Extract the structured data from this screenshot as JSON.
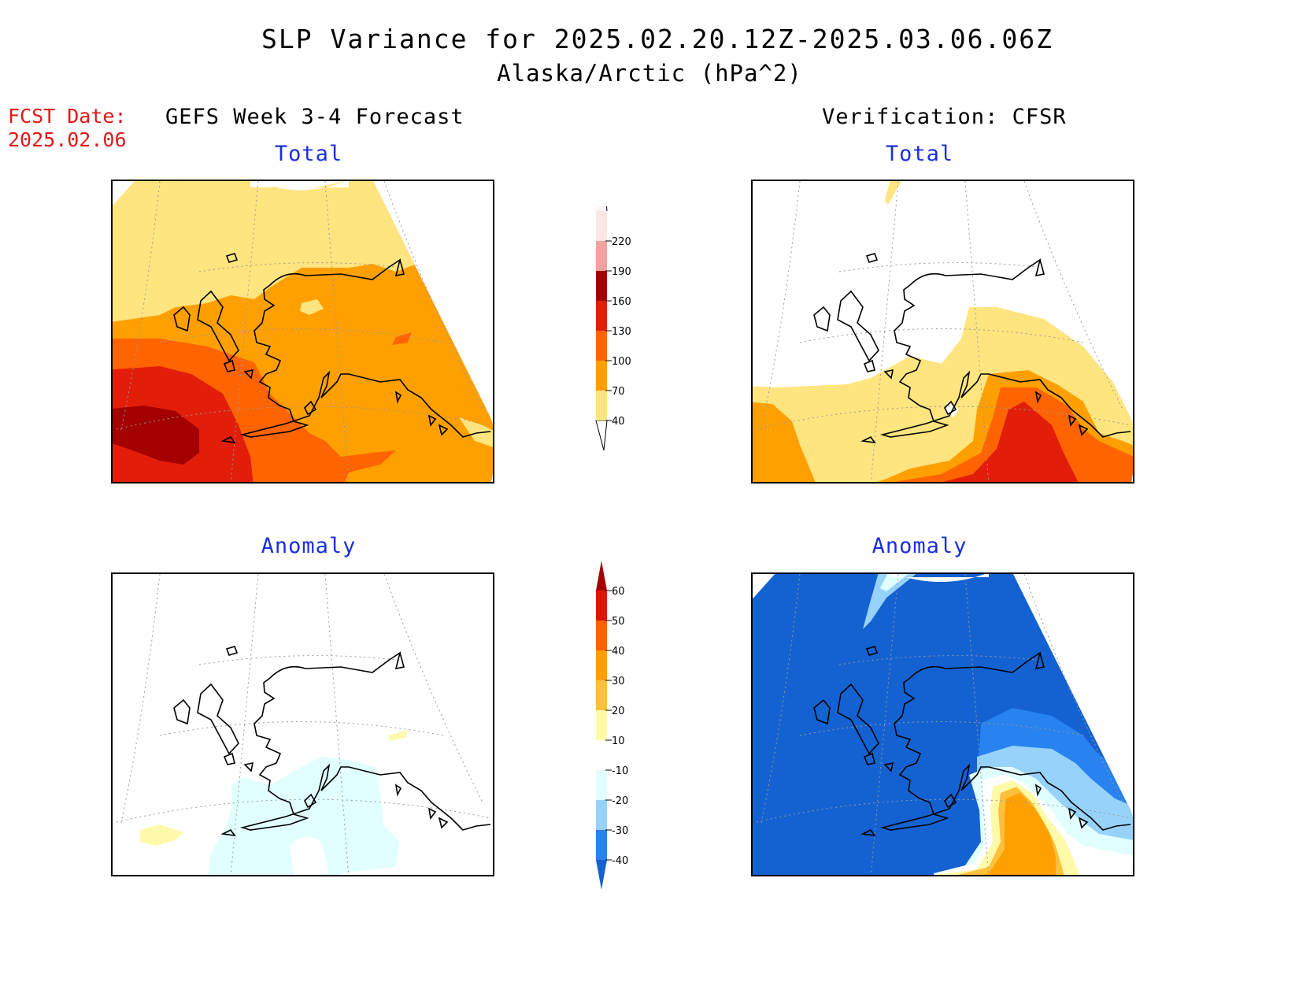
{
  "header": {
    "title": "SLP Variance for 2025.02.20.12Z-2025.03.06.06Z",
    "subtitle": "Alaska/Arctic (hPa^2)",
    "fcst_date_label": "FCST Date:",
    "fcst_date_value": "2025.02.06"
  },
  "columns": {
    "left_title": "GEFS Week 3-4 Forecast",
    "right_title": "Verification: CFSR"
  },
  "panels": {
    "forecast_total": "Total",
    "verify_total": "Total",
    "forecast_anomaly": "Anomaly",
    "verify_anomaly": "Anomaly"
  },
  "colorbars": {
    "total": {
      "ticks": [
        "40",
        "70",
        "100",
        "130",
        "160",
        "190",
        "220"
      ],
      "colors": [
        "#ffe57f",
        "#ffa000",
        "#ff6400",
        "#e21e0a",
        "#a50000",
        "#f3a0a0",
        "#fce6e6"
      ]
    },
    "anomaly": {
      "ticks": [
        "-40",
        "-30",
        "-20",
        "-10",
        "10",
        "20",
        "30",
        "40",
        "50",
        "60"
      ],
      "colors": [
        "#1462d2",
        "#2882f0",
        "#96d2fa",
        "#e1ffff",
        "#ffffff",
        "#fffaaa",
        "#ffc03c",
        "#ffa000",
        "#ff6000",
        "#e11400",
        "#a50000"
      ]
    }
  }
}
